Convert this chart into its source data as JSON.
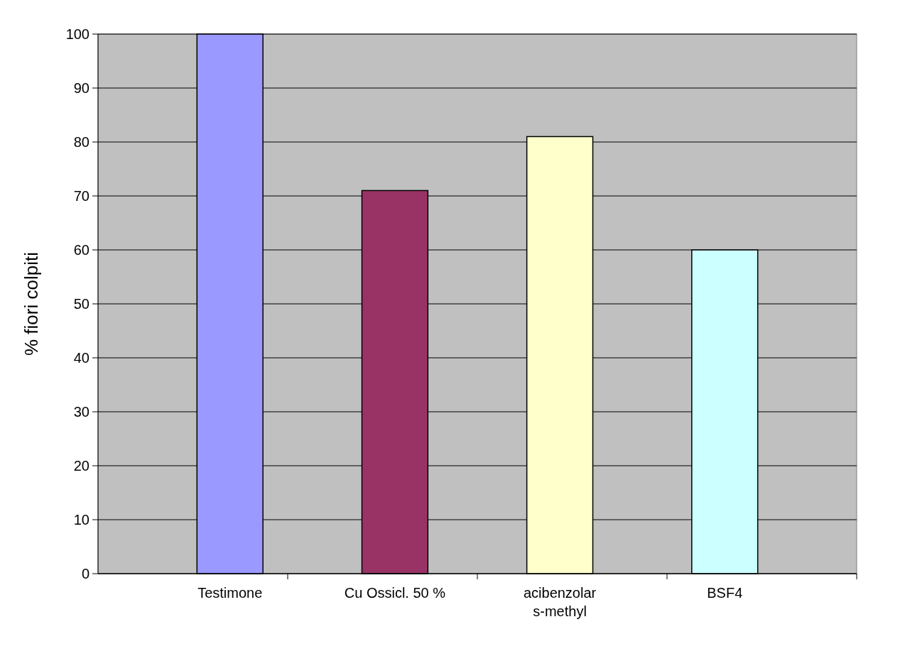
{
  "chart_data": {
    "type": "bar",
    "ylabel": "% fiori colpiti",
    "categories": [
      "Testimone",
      "Cu Ossicl. 50 %",
      "acibenzolar\ns-methyl",
      "BSF4"
    ],
    "values": [
      100,
      71,
      81,
      60
    ],
    "colors": [
      "#9999ff",
      "#993366",
      "#ffffcc",
      "#ccffff"
    ],
    "ylim": [
      0,
      100
    ],
    "yticks": [
      0,
      10,
      20,
      30,
      40,
      50,
      60,
      70,
      80,
      90,
      100
    ],
    "grid": "y"
  }
}
